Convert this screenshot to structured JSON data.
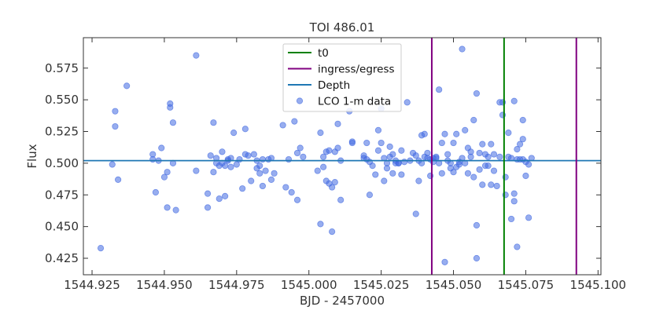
{
  "chart_data": {
    "type": "scatter",
    "title": "TOI 486.01",
    "xlabel": "BJD - 2457000",
    "ylabel": "Flux",
    "xlim": [
      1544.922,
      1545.101
    ],
    "ylim": [
      0.412,
      0.599
    ],
    "xticks": [
      1544.925,
      1544.95,
      1544.975,
      1545.0,
      1545.025,
      1545.05,
      1545.075,
      1545.1
    ],
    "xtick_labels": [
      "1544.925",
      "1544.950",
      "1544.975",
      "1545.000",
      "1545.025",
      "1545.050",
      "1545.075",
      "1545.100"
    ],
    "yticks": [
      0.425,
      0.45,
      0.475,
      0.5,
      0.525,
      0.55,
      0.575
    ],
    "ytick_labels": [
      "0.425",
      "0.450",
      "0.475",
      "0.500",
      "0.525",
      "0.550",
      "0.575"
    ],
    "grid": false,
    "legend_position": "top-center",
    "legend": [
      {
        "label": "t0",
        "kind": "line",
        "color": "#008000"
      },
      {
        "label": "ingress/egress",
        "kind": "line",
        "color": "#800080"
      },
      {
        "label": "Depth",
        "kind": "line",
        "color": "#1f77b4"
      },
      {
        "label": "LCO 1-m data",
        "kind": "marker",
        "color": "#4169e1"
      }
    ],
    "vertical_lines": [
      {
        "name": "ingress",
        "series": "ingress/egress",
        "x": 1545.0425,
        "color": "#800080"
      },
      {
        "name": "t0",
        "series": "t0",
        "x": 1545.0675,
        "color": "#008000"
      },
      {
        "name": "egress",
        "series": "ingress/egress",
        "x": 1545.0925,
        "color": "#800080"
      }
    ],
    "horizontal_lines": [
      {
        "name": "depth",
        "series": "Depth",
        "y": 0.502,
        "color": "#1f77b4"
      }
    ],
    "series": [
      {
        "name": "LCO 1-m data",
        "color": "#4169e1",
        "points": [
          [
            1544.928,
            0.433
          ],
          [
            1544.932,
            0.499
          ],
          [
            1544.933,
            0.529
          ],
          [
            1544.933,
            0.541
          ],
          [
            1544.934,
            0.487
          ],
          [
            1544.937,
            0.561
          ],
          [
            1544.946,
            0.507
          ],
          [
            1544.946,
            0.503
          ],
          [
            1544.947,
            0.477
          ],
          [
            1544.948,
            0.502
          ],
          [
            1544.949,
            0.512
          ],
          [
            1544.95,
            0.489
          ],
          [
            1544.951,
            0.493
          ],
          [
            1544.951,
            0.465
          ],
          [
            1544.952,
            0.547
          ],
          [
            1544.952,
            0.544
          ],
          [
            1544.953,
            0.5
          ],
          [
            1544.953,
            0.532
          ],
          [
            1544.954,
            0.463
          ],
          [
            1544.961,
            0.585
          ],
          [
            1544.961,
            0.494
          ],
          [
            1544.965,
            0.476
          ],
          [
            1544.965,
            0.465
          ],
          [
            1544.966,
            0.506
          ],
          [
            1544.967,
            0.532
          ],
          [
            1544.967,
            0.493
          ],
          [
            1544.968,
            0.5
          ],
          [
            1544.968,
            0.504
          ],
          [
            1544.969,
            0.498
          ],
          [
            1544.969,
            0.472
          ],
          [
            1544.97,
            0.509
          ],
          [
            1544.97,
            0.5
          ],
          [
            1544.971,
            0.498
          ],
          [
            1544.971,
            0.474
          ],
          [
            1544.972,
            0.503
          ],
          [
            1544.972,
            0.502
          ],
          [
            1544.973,
            0.497
          ],
          [
            1544.973,
            0.504
          ],
          [
            1544.974,
            0.524
          ],
          [
            1544.975,
            0.499
          ],
          [
            1544.976,
            0.503
          ],
          [
            1544.977,
            0.48
          ],
          [
            1544.978,
            0.507
          ],
          [
            1544.978,
            0.527
          ],
          [
            1544.979,
            0.506
          ],
          [
            1544.98,
            0.486
          ],
          [
            1544.981,
            0.507
          ],
          [
            1544.982,
            0.502
          ],
          [
            1544.982,
            0.496
          ],
          [
            1544.983,
            0.492
          ],
          [
            1544.983,
            0.498
          ],
          [
            1544.984,
            0.503
          ],
          [
            1544.984,
            0.482
          ],
          [
            1544.985,
            0.494
          ],
          [
            1544.986,
            0.503
          ],
          [
            1544.987,
            0.487
          ],
          [
            1544.987,
            0.504
          ],
          [
            1544.988,
            0.492
          ],
          [
            1544.991,
            0.53
          ],
          [
            1544.992,
            0.481
          ],
          [
            1544.993,
            0.503
          ],
          [
            1544.994,
            0.477
          ],
          [
            1544.995,
            0.533
          ],
          [
            1544.996,
            0.508
          ],
          [
            1544.996,
            0.471
          ],
          [
            1544.997,
            0.512
          ],
          [
            1544.998,
            0.505
          ],
          [
            1545.003,
            0.494
          ],
          [
            1545.004,
            0.452
          ],
          [
            1545.004,
            0.524
          ],
          [
            1545.005,
            0.505
          ],
          [
            1545.005,
            0.497
          ],
          [
            1545.006,
            0.486
          ],
          [
            1545.006,
            0.509
          ],
          [
            1545.007,
            0.51
          ],
          [
            1545.007,
            0.484
          ],
          [
            1545.008,
            0.481
          ],
          [
            1545.008,
            0.446
          ],
          [
            1545.009,
            0.485
          ],
          [
            1545.009,
            0.509
          ],
          [
            1545.01,
            0.512
          ],
          [
            1545.01,
            0.531
          ],
          [
            1545.011,
            0.471
          ],
          [
            1545.011,
            0.502
          ],
          [
            1545.014,
            0.541
          ],
          [
            1545.015,
            0.516
          ],
          [
            1545.015,
            0.517
          ],
          [
            1545.019,
            0.506
          ],
          [
            1545.019,
            0.504
          ],
          [
            1545.02,
            0.516
          ],
          [
            1545.02,
            0.503
          ],
          [
            1545.021,
            0.475
          ],
          [
            1545.021,
            0.501
          ],
          [
            1545.022,
            0.498
          ],
          [
            1545.023,
            0.491
          ],
          [
            1545.024,
            0.51
          ],
          [
            1545.024,
            0.526
          ],
          [
            1545.025,
            0.543
          ],
          [
            1545.025,
            0.516
          ],
          [
            1545.026,
            0.486
          ],
          [
            1545.026,
            0.504
          ],
          [
            1545.027,
            0.5
          ],
          [
            1545.027,
            0.496
          ],
          [
            1545.028,
            0.505
          ],
          [
            1545.028,
            0.513
          ],
          [
            1545.029,
            0.507
          ],
          [
            1545.029,
            0.492
          ],
          [
            1545.03,
            0.5
          ],
          [
            1545.03,
            0.502
          ],
          [
            1545.031,
            0.5
          ],
          [
            1545.031,
            0.5
          ],
          [
            1545.032,
            0.51
          ],
          [
            1545.032,
            0.491
          ],
          [
            1545.033,
            0.501
          ],
          [
            1545.034,
            0.548
          ],
          [
            1545.035,
            0.502
          ],
          [
            1545.036,
            0.508
          ],
          [
            1545.037,
            0.46
          ],
          [
            1545.037,
            0.506
          ],
          [
            1545.038,
            0.502
          ],
          [
            1545.038,
            0.486
          ],
          [
            1545.039,
            0.522
          ],
          [
            1545.039,
            0.5
          ],
          [
            1545.04,
            0.505
          ],
          [
            1545.04,
            0.523
          ],
          [
            1545.041,
            0.508
          ],
          [
            1545.041,
            0.504
          ],
          [
            1545.042,
            0.503
          ],
          [
            1545.042,
            0.49
          ],
          [
            1545.043,
            0.504
          ],
          [
            1545.043,
            0.501
          ],
          [
            1545.044,
            0.504
          ],
          [
            1545.044,
            0.505
          ],
          [
            1545.045,
            0.558
          ],
          [
            1545.045,
            0.5
          ],
          [
            1545.046,
            0.516
          ],
          [
            1545.046,
            0.492
          ],
          [
            1545.047,
            0.523
          ],
          [
            1545.047,
            0.422
          ],
          [
            1545.048,
            0.507
          ],
          [
            1545.048,
            0.502
          ],
          [
            1545.049,
            0.5
          ],
          [
            1545.049,
            0.496
          ],
          [
            1545.05,
            0.493
          ],
          [
            1545.05,
            0.516
          ],
          [
            1545.051,
            0.523
          ],
          [
            1545.051,
            0.497
          ],
          [
            1545.052,
            0.501
          ],
          [
            1545.052,
            0.499
          ],
          [
            1545.053,
            0.59
          ],
          [
            1545.053,
            0.504
          ],
          [
            1545.054,
            0.526
          ],
          [
            1545.054,
            0.5
          ],
          [
            1545.055,
            0.492
          ],
          [
            1545.055,
            0.512
          ],
          [
            1545.056,
            0.505
          ],
          [
            1545.056,
            0.509
          ],
          [
            1545.057,
            0.489
          ],
          [
            1545.057,
            0.534
          ],
          [
            1545.058,
            0.425
          ],
          [
            1545.058,
            0.451
          ],
          [
            1545.058,
            0.555
          ],
          [
            1545.059,
            0.508
          ],
          [
            1545.059,
            0.495
          ],
          [
            1545.06,
            0.483
          ],
          [
            1545.06,
            0.515
          ],
          [
            1545.061,
            0.507
          ],
          [
            1545.061,
            0.498
          ],
          [
            1545.062,
            0.498
          ],
          [
            1545.062,
            0.505
          ],
          [
            1545.063,
            0.483
          ],
          [
            1545.063,
            0.515
          ],
          [
            1545.064,
            0.507
          ],
          [
            1545.064,
            0.494
          ],
          [
            1545.065,
            0.482
          ],
          [
            1545.066,
            0.548
          ],
          [
            1545.066,
            0.505
          ],
          [
            1545.067,
            0.548
          ],
          [
            1545.067,
            0.538
          ],
          [
            1545.068,
            0.489
          ],
          [
            1545.068,
            0.475
          ],
          [
            1545.069,
            0.524
          ],
          [
            1545.069,
            0.505
          ],
          [
            1545.07,
            0.456
          ],
          [
            1545.07,
            0.504
          ],
          [
            1545.071,
            0.549
          ],
          [
            1545.071,
            0.476
          ],
          [
            1545.071,
            0.47
          ],
          [
            1545.072,
            0.434
          ],
          [
            1545.072,
            0.503
          ],
          [
            1545.072,
            0.511
          ],
          [
            1545.073,
            0.515
          ],
          [
            1545.073,
            0.503
          ],
          [
            1545.074,
            0.519
          ],
          [
            1545.074,
            0.503
          ],
          [
            1545.074,
            0.534
          ],
          [
            1545.075,
            0.49
          ],
          [
            1545.075,
            0.501
          ],
          [
            1545.076,
            0.499
          ],
          [
            1545.076,
            0.457
          ],
          [
            1545.077,
            0.504
          ]
        ]
      }
    ]
  }
}
